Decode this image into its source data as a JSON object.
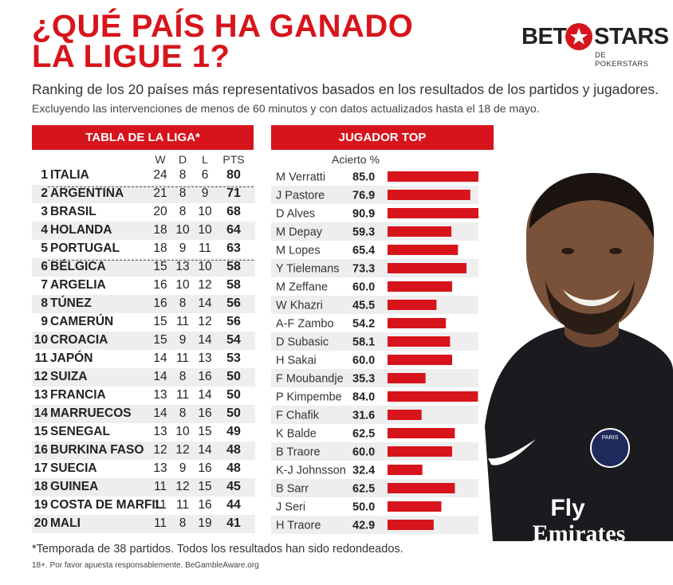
{
  "title_line1": "¿QUÉ PAÍS HA GANADO",
  "title_line2": "LA LIGUE 1?",
  "logo": {
    "bet": "BET",
    "stars": "STARS",
    "sub": "DE POKERSTARS"
  },
  "subtitle": "Ranking de los 20 países más representativos basados en los resultados de los partidos y jugadores.",
  "note": "Excluyendo las intervenciones de menos de 60 minutos y con datos actualizados hasta el 18 de mayo.",
  "league": {
    "header": "TABLA DE LA LIGA*",
    "columns": {
      "w": "W",
      "d": "D",
      "l": "L",
      "pts": "PTS"
    },
    "rows": [
      {
        "pos": "1",
        "country": "ITALIA",
        "w": "24",
        "d": "8",
        "l": "6",
        "pts": "80"
      },
      {
        "pos": "2",
        "country": "ARGENTINA",
        "w": "21",
        "d": "8",
        "l": "9",
        "pts": "71"
      },
      {
        "pos": "3",
        "country": "BRASIL",
        "w": "20",
        "d": "8",
        "l": "10",
        "pts": "68"
      },
      {
        "pos": "4",
        "country": "HOLANDA",
        "w": "18",
        "d": "10",
        "l": "10",
        "pts": "64"
      },
      {
        "pos": "5",
        "country": "PORTUGAL",
        "w": "18",
        "d": "9",
        "l": "11",
        "pts": "63"
      },
      {
        "pos": "6",
        "country": "BÉLGICA",
        "w": "15",
        "d": "13",
        "l": "10",
        "pts": "58"
      },
      {
        "pos": "7",
        "country": "ARGELIA",
        "w": "16",
        "d": "10",
        "l": "12",
        "pts": "58"
      },
      {
        "pos": "8",
        "country": "TÚNEZ",
        "w": "16",
        "d": "8",
        "l": "14",
        "pts": "56"
      },
      {
        "pos": "9",
        "country": "CAMERÚN",
        "w": "15",
        "d": "11",
        "l": "12",
        "pts": "56"
      },
      {
        "pos": "10",
        "country": "CROACIA",
        "w": "15",
        "d": "9",
        "l": "14",
        "pts": "54"
      },
      {
        "pos": "11",
        "country": "JAPÓN",
        "w": "14",
        "d": "11",
        "l": "13",
        "pts": "53"
      },
      {
        "pos": "12",
        "country": "SUIZA",
        "w": "14",
        "d": "8",
        "l": "16",
        "pts": "50"
      },
      {
        "pos": "13",
        "country": "FRANCIA",
        "w": "13",
        "d": "11",
        "l": "14",
        "pts": "50"
      },
      {
        "pos": "14",
        "country": "MARRUECOS",
        "w": "14",
        "d": "8",
        "l": "16",
        "pts": "50"
      },
      {
        "pos": "15",
        "country": "SENEGAL",
        "w": "13",
        "d": "10",
        "l": "15",
        "pts": "49"
      },
      {
        "pos": "16",
        "country": "BURKINA FASO",
        "w": "12",
        "d": "12",
        "l": "14",
        "pts": "48"
      },
      {
        "pos": "17",
        "country": "SUECIA",
        "w": "13",
        "d": "9",
        "l": "16",
        "pts": "48"
      },
      {
        "pos": "18",
        "country": "GUINEA",
        "w": "11",
        "d": "12",
        "l": "15",
        "pts": "45"
      },
      {
        "pos": "19",
        "country": "COSTA DE MARFIL",
        "w": "11",
        "d": "11",
        "l": "16",
        "pts": "44"
      },
      {
        "pos": "20",
        "country": "MALI",
        "w": "11",
        "d": "8",
        "l": "19",
        "pts": "41"
      }
    ]
  },
  "players": {
    "header": "JUGADOR TOP",
    "value_header": "Acierto %"
  },
  "chart_data": {
    "type": "bar",
    "title": "JUGADOR TOP",
    "ylabel": "Acierto %",
    "categories": [
      "M Verratti",
      "J Pastore",
      "D Alves",
      "M Depay",
      "M Lopes",
      "Y Tielemans",
      "M Zeffane",
      "W Khazri",
      "A-F Zambo",
      "D Subasic",
      "H Sakai",
      "F Moubandje",
      "P Kimpembe",
      "F Chafik",
      "K Balde",
      "B Traore",
      "K-J Johnsson",
      "B Sarr",
      "J Seri",
      "H Traore"
    ],
    "values": [
      85.0,
      76.9,
      90.9,
      59.3,
      65.4,
      73.3,
      60.0,
      45.5,
      54.2,
      58.1,
      60.0,
      35.3,
      84.0,
      31.6,
      62.5,
      60.0,
      32.4,
      62.5,
      50.0,
      42.9
    ],
    "value_labels": [
      "85.0",
      "76.9",
      "90.9",
      "59.3",
      "65.4",
      "73.3",
      "60.0",
      "45.5",
      "54.2",
      "58.1",
      "60.0",
      "35.3",
      "84.0",
      "31.6",
      "62.5",
      "60.0",
      "32.4",
      "62.5",
      "50.0",
      "42.9"
    ],
    "orientation": "horizontal",
    "xlim": [
      0,
      100
    ],
    "grid": false,
    "bar_color": "#d7141b"
  },
  "photo_text": {
    "sponsor_line1": "Fly",
    "sponsor_line2": "Emirates",
    "crest_text": "PARIS"
  },
  "footnote": "*Temporada de 38 partidos. Todos los resultados han sido redondeados.",
  "disclaimer": "18+. Por favor apuesta responsablemente. BeGambleAware.org"
}
